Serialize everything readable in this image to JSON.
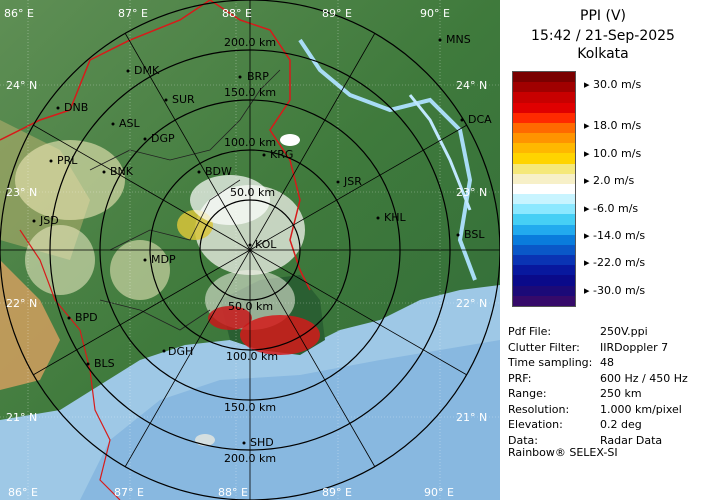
{
  "map": {
    "longitudes": [
      "86° E",
      "87° E",
      "88° E",
      "89° E",
      "90° E"
    ],
    "latitudes": [
      "24° N",
      "23° N",
      "22° N",
      "21° N"
    ],
    "rings": [
      "50.0 km",
      "100.0 km",
      "150.0 km",
      "200.0 km"
    ],
    "cities": [
      {
        "code": "MNS"
      },
      {
        "code": "DMK"
      },
      {
        "code": "BRP"
      },
      {
        "code": "DNB"
      },
      {
        "code": "SUR"
      },
      {
        "code": "ASL"
      },
      {
        "code": "DGP"
      },
      {
        "code": "DCA"
      },
      {
        "code": "KRG"
      },
      {
        "code": "PRL"
      },
      {
        "code": "BNK"
      },
      {
        "code": "BDW"
      },
      {
        "code": "JSR"
      },
      {
        "code": "JSD"
      },
      {
        "code": "KHL"
      },
      {
        "code": "BSL"
      },
      {
        "code": "MDP"
      },
      {
        "code": "KOL"
      },
      {
        "code": "BPD"
      },
      {
        "code": "DGH"
      },
      {
        "code": "BLS"
      },
      {
        "code": "SHD"
      }
    ]
  },
  "legend": {
    "product": "PPI (V)",
    "datetime": "15:42 / 21-Sep-2025",
    "station": "Kolkata",
    "scale_labels": [
      "30.0 m/s",
      "18.0 m/s",
      "10.0 m/s",
      "2.0 m/s",
      "-6.0 m/s",
      "-14.0 m/s",
      "-22.0 m/s",
      "-30.0 m/s"
    ],
    "scale_colors": [
      "#7a0000",
      "#a00000",
      "#c80000",
      "#e00000",
      "#ff2a00",
      "#ff6a00",
      "#ff9400",
      "#ffb800",
      "#ffd400",
      "#f5e87a",
      "#f7f0c8",
      "#ffffff",
      "#c8f4ff",
      "#8ce8ff",
      "#46cff5",
      "#22aaee",
      "#0a7cdc",
      "#0a58c8",
      "#0a34b4",
      "#08189e",
      "#0a0a8a",
      "#1c0a78",
      "#360a6a"
    ]
  },
  "info": {
    "rows": [
      {
        "label": "Pdf File:",
        "value": "250V.ppi"
      },
      {
        "label": "Clutter Filter:",
        "value": "IIRDoppler 7"
      },
      {
        "label": "Time sampling:",
        "value": "48"
      },
      {
        "label": "PRF:",
        "value": "600 Hz / 450 Hz"
      },
      {
        "label": "Range:",
        "value": "250 km"
      },
      {
        "label": "Resolution:",
        "value": "1.000 km/pixel"
      },
      {
        "label": "Elevation:",
        "value": "0.2 deg"
      },
      {
        "label": "Data:",
        "value": "Radar Data"
      }
    ],
    "credit": "Rainbow® SELEX-SI"
  }
}
